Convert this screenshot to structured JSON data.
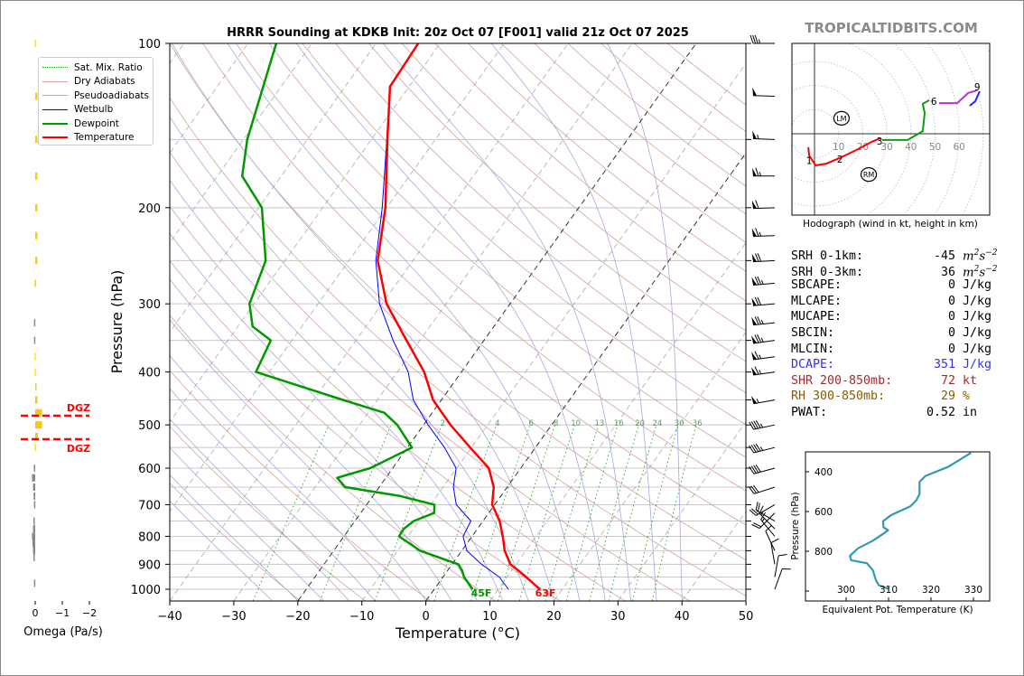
{
  "header": {
    "title": "HRRR Sounding at KDKB Init: 20z Oct 07 [F001] valid 21z Oct 07 2025",
    "brand": "TROPICALTIDBITS.COM"
  },
  "legend": [
    {
      "label": "Sat. Mix. Ratio",
      "color": "#2ca02c",
      "style": "dotted"
    },
    {
      "label": "Dry Adiabats",
      "color": "#d9a0a0",
      "style": "solid"
    },
    {
      "label": "Pseudoadiabats",
      "color": "#a8a8e0",
      "style": "solid"
    },
    {
      "label": "Wetbulb",
      "color": "#0000ff",
      "style": "thin"
    },
    {
      "label": "Dewpoint",
      "color": "#009900",
      "style": "thick"
    },
    {
      "label": "Temperature",
      "color": "#ff0000",
      "style": "thick"
    }
  ],
  "stats": [
    {
      "label": "SRH 0-1km:",
      "value": "-45",
      "unit": "m2s-2",
      "color": "#000000"
    },
    {
      "label": "SRH 0-3km:",
      "value": "36",
      "unit": "m2s-2",
      "color": "#000000"
    },
    {
      "label": "SBCAPE:",
      "value": "0",
      "unit": "J/kg",
      "color": "#000000"
    },
    {
      "label": "MLCAPE:",
      "value": "0",
      "unit": "J/kg",
      "color": "#000000"
    },
    {
      "label": "MUCAPE:",
      "value": "0",
      "unit": "J/kg",
      "color": "#000000"
    },
    {
      "label": "SBCIN:",
      "value": "0",
      "unit": "J/kg",
      "color": "#000000"
    },
    {
      "label": "MLCIN:",
      "value": "0",
      "unit": "J/kg",
      "color": "#000000"
    },
    {
      "label": "DCAPE:",
      "value": "351",
      "unit": "J/kg",
      "color": "#3333dd"
    },
    {
      "label": "SHR 200-850mb:",
      "value": "72",
      "unit": "kt",
      "color": "#a52a2a"
    },
    {
      "label": "RH 300-850mb:",
      "value": "29",
      "unit": "%",
      "color": "#8b5a00"
    },
    {
      "label": "PWAT:",
      "value": "0.52",
      "unit": "in",
      "color": "#000000"
    }
  ],
  "chart_data": [
    {
      "type": "line",
      "title": "HRRR Sounding at KDKB Init: 20z Oct 07 [F001] valid 21z Oct 07 2025",
      "xlabel": "Temperature (°C)",
      "ylabel": "Pressure (hPa)",
      "xlim": [
        -40,
        50
      ],
      "ylim": [
        1050,
        100
      ],
      "x_ticks": [
        -40,
        -30,
        -20,
        -10,
        0,
        10,
        20,
        30,
        40,
        50
      ],
      "y_ticks": [
        100,
        200,
        300,
        400,
        500,
        600,
        700,
        800,
        900,
        1000
      ],
      "isobars": [
        100,
        150,
        200,
        250,
        300,
        350,
        400,
        450,
        500,
        550,
        600,
        650,
        700,
        750,
        800,
        850,
        900,
        950,
        1000
      ],
      "legend_position": "top-left",
      "mixing_ratio_labels": [
        "2",
        "4",
        "6",
        "8",
        "10",
        "13",
        "16",
        "20",
        "24",
        "30",
        "36"
      ],
      "surface_labels": {
        "dewpoint": "45F",
        "temperature": "63F"
      },
      "series": [
        {
          "name": "Temperature",
          "color": "#ff0000",
          "p": [
            1000,
            950,
            925,
            900,
            850,
            800,
            750,
            700,
            650,
            600,
            550,
            500,
            450,
            400,
            350,
            300,
            250,
            200,
            150,
            120,
            100
          ],
          "t": [
            16.5,
            13.0,
            11.1,
            9.1,
            6.7,
            4.8,
            2.6,
            -0.4,
            -2.1,
            -5.0,
            -10.2,
            -15.8,
            -21.3,
            -25.8,
            -32.1,
            -39.3,
            -45.5,
            -50.2,
            -57.5,
            -63.0,
            -63.4
          ]
        },
        {
          "name": "Dewpoint",
          "color": "#009900",
          "p": [
            1000,
            950,
            925,
            900,
            850,
            800,
            775,
            750,
            725,
            700,
            675,
            650,
            625,
            600,
            550,
            500,
            475,
            450,
            400,
            350,
            330,
            300,
            250,
            200,
            175,
            150,
            100
          ],
          "t": [
            6.0,
            3.3,
            2.3,
            1.0,
            -6.5,
            -11.4,
            -11.5,
            -10.8,
            -8.5,
            -9.4,
            -15.7,
            -25.3,
            -27.6,
            -23.5,
            -19.3,
            -24.1,
            -27.5,
            -35.4,
            -52.1,
            -53.3,
            -57.7,
            -60.7,
            -63.0,
            -69.5,
            -76.1,
            -79.4,
            -85.6
          ]
        },
        {
          "name": "Wetbulb",
          "color": "#0000ff",
          "p": [
            1000,
            950,
            900,
            850,
            800,
            750,
            700,
            650,
            600,
            550,
            500,
            450,
            400,
            350,
            300,
            250,
            200,
            150,
            120
          ],
          "t": [
            11.6,
            8.8,
            4.6,
            0.8,
            -1.4,
            -1.9,
            -6.0,
            -8.4,
            -10.1,
            -14.2,
            -19.3,
            -24.4,
            -28.3,
            -34.2,
            -40.4,
            -45.8,
            -50.7,
            -57.6,
            -63.0
          ]
        }
      ],
      "winds": [
        {
          "p": 100,
          "dir": 270,
          "spd": 35
        },
        {
          "p": 125,
          "dir": 272,
          "spd": 50
        },
        {
          "p": 150,
          "dir": 272,
          "spd": 55
        },
        {
          "p": 175,
          "dir": 270,
          "spd": 65
        },
        {
          "p": 200,
          "dir": 268,
          "spd": 60
        },
        {
          "p": 225,
          "dir": 268,
          "spd": 65
        },
        {
          "p": 250,
          "dir": 267,
          "spd": 70
        },
        {
          "p": 275,
          "dir": 265,
          "spd": 75
        },
        {
          "p": 300,
          "dir": 265,
          "spd": 70
        },
        {
          "p": 325,
          "dir": 264,
          "spd": 75
        },
        {
          "p": 350,
          "dir": 262,
          "spd": 75
        },
        {
          "p": 375,
          "dir": 262,
          "spd": 65
        },
        {
          "p": 400,
          "dir": 262,
          "spd": 65
        },
        {
          "p": 450,
          "dir": 260,
          "spd": 55
        },
        {
          "p": 500,
          "dir": 258,
          "spd": 45
        },
        {
          "p": 550,
          "dir": 256,
          "spd": 45
        },
        {
          "p": 600,
          "dir": 255,
          "spd": 40
        },
        {
          "p": 650,
          "dir": 252,
          "spd": 30
        },
        {
          "p": 700,
          "dir": 240,
          "spd": 25
        },
        {
          "p": 725,
          "dir": 225,
          "spd": 20
        },
        {
          "p": 750,
          "dir": 300,
          "spd": 20
        },
        {
          "p": 775,
          "dir": 315,
          "spd": 15
        },
        {
          "p": 800,
          "dir": 320,
          "spd": 15
        },
        {
          "p": 850,
          "dir": 335,
          "spd": 10
        },
        {
          "p": 900,
          "dir": 350,
          "spd": 10
        },
        {
          "p": 950,
          "dir": 10,
          "spd": 10
        },
        {
          "p": 1000,
          "dir": 20,
          "spd": 8
        }
      ]
    },
    {
      "type": "bar",
      "title": "Omega",
      "xlabel": "Omega (Pa/s)",
      "x_ticks": [
        0,
        -1,
        -2
      ],
      "dgz_label": "DGZ",
      "dgz_p": [
        481,
        531
      ],
      "bars": [
        {
          "p": 100,
          "omega": -0.02,
          "color": "#ffe600"
        },
        {
          "p": 125,
          "omega": -0.08,
          "color": "#f5d000"
        },
        {
          "p": 150,
          "omega": -0.08,
          "color": "#f5d000"
        },
        {
          "p": 175,
          "omega": -0.08,
          "color": "#f5d000"
        },
        {
          "p": 200,
          "omega": -0.08,
          "color": "#f5d000"
        },
        {
          "p": 225,
          "omega": -0.08,
          "color": "#f5d000"
        },
        {
          "p": 250,
          "omega": -0.08,
          "color": "#f5d000"
        },
        {
          "p": 275,
          "omega": -0.04,
          "color": "#f5d000"
        },
        {
          "p": 325,
          "omega": 0.02,
          "color": "#888888"
        },
        {
          "p": 350,
          "omega": 0.02,
          "color": "#888888"
        },
        {
          "p": 375,
          "omega": -0.02,
          "color": "#ffe600"
        },
        {
          "p": 400,
          "omega": -0.03,
          "color": "#ffe600"
        },
        {
          "p": 425,
          "omega": -0.05,
          "color": "#f5d000"
        },
        {
          "p": 450,
          "omega": -0.08,
          "color": "#f5c518"
        },
        {
          "p": 475,
          "omega": -0.25,
          "color": "#f5c518"
        },
        {
          "p": 500,
          "omega": -0.25,
          "color": "#f5c518"
        },
        {
          "p": 525,
          "omega": -0.1,
          "color": "#f5c518"
        },
        {
          "p": 550,
          "omega": -0.03,
          "color": "#ffe600"
        },
        {
          "p": 600,
          "omega": 0.05,
          "color": "#888888"
        },
        {
          "p": 625,
          "omega": 0.12,
          "color": "#888888"
        },
        {
          "p": 650,
          "omega": 0.08,
          "color": "#888888"
        },
        {
          "p": 675,
          "omega": 0.06,
          "color": "#888888"
        },
        {
          "p": 700,
          "omega": 0.02,
          "color": "#888888"
        },
        {
          "p": 750,
          "omega": 0.04,
          "color": "#888888"
        },
        {
          "p": 775,
          "omega": 0.08,
          "color": "#888888"
        },
        {
          "p": 800,
          "omega": 0.12,
          "color": "#888888"
        },
        {
          "p": 825,
          "omega": 0.1,
          "color": "#888888"
        },
        {
          "p": 850,
          "omega": 0.08,
          "color": "#888888"
        },
        {
          "p": 875,
          "omega": 0.04,
          "color": "#888888"
        },
        {
          "p": 975,
          "omega": 0.02,
          "color": "#888888"
        }
      ]
    },
    {
      "type": "line",
      "title": "Hodograph",
      "caption": "Hodograph (wind in kt, height in km)",
      "ring_labels": [
        "10",
        "20",
        "30",
        "40",
        "50",
        "60"
      ],
      "segments": [
        {
          "color": "#ff0000",
          "u": [
            -2.6,
            -2.2,
            0.4,
            4.9,
            11.2,
            18.0,
            23.6,
            27.3
          ],
          "v": [
            -5.6,
            -9.0,
            -13.1,
            -12.4,
            -9.7,
            -6.4,
            -3.4,
            -1.9
          ]
        },
        {
          "color": "#119911",
          "u": [
            28.1,
            38.6,
            44.9,
            45.7,
            44.9,
            47.6
          ],
          "v": [
            -2.6,
            -2.6,
            1.1,
            8.6,
            12.4,
            13.9
          ]
        },
        {
          "color": "#bb33cc",
          "u": [
            51.7,
            59.2,
            63.7,
            67.4
          ],
          "v": [
            12.7,
            12.7,
            16.9,
            18.0
          ]
        },
        {
          "color": "#2222ff",
          "u": [
            68.5,
            66.7,
            64.4
          ],
          "v": [
            17.6,
            13.5,
            11.6
          ]
        }
      ],
      "height_labels": [
        {
          "km": "1",
          "u": -2.2,
          "v": -11.0
        },
        {
          "km": "2",
          "u": 10.5,
          "v": -10.5
        },
        {
          "km": "3",
          "u": 27.0,
          "v": -3.0
        },
        {
          "km": "6",
          "u": 49.5,
          "v": 13.5
        },
        {
          "km": "9",
          "u": 67.5,
          "v": 19.5
        }
      ],
      "markers": [
        {
          "label": "LM",
          "u": 11.2,
          "v": 6.4
        },
        {
          "label": "RM",
          "u": 22.5,
          "v": -16.9
        }
      ]
    },
    {
      "type": "line",
      "title": "Equivalent Potential Temperature",
      "xlabel": "Equivalent Pot. Temperature (K)",
      "ylabel": "Pressure (hPa)",
      "x_ticks": [
        300,
        310,
        320,
        330
      ],
      "y_ticks": [
        400,
        600,
        800
      ],
      "xlim": [
        290.4,
        333.8
      ],
      "ylim": [
        1050,
        300
      ],
      "color": "#3399b3",
      "theta_e": [
        310.1,
        307.7,
        307.0,
        306.3,
        304.9,
        301.2,
        300.9,
        302.8,
        306.3,
        308.4,
        309.9,
        308.8,
        308.7,
        310.6,
        315.2,
        316.6,
        317.3,
        317.3,
        318.7,
        324.0,
        326.9,
        329.4
      ],
      "p": [
        990,
        971,
        944,
        895,
        860,
        845,
        823,
        785,
        747,
        717,
        694,
        679,
        649,
        618,
        573,
        542,
        512,
        451,
        421,
        376,
        338,
        305
      ]
    }
  ]
}
